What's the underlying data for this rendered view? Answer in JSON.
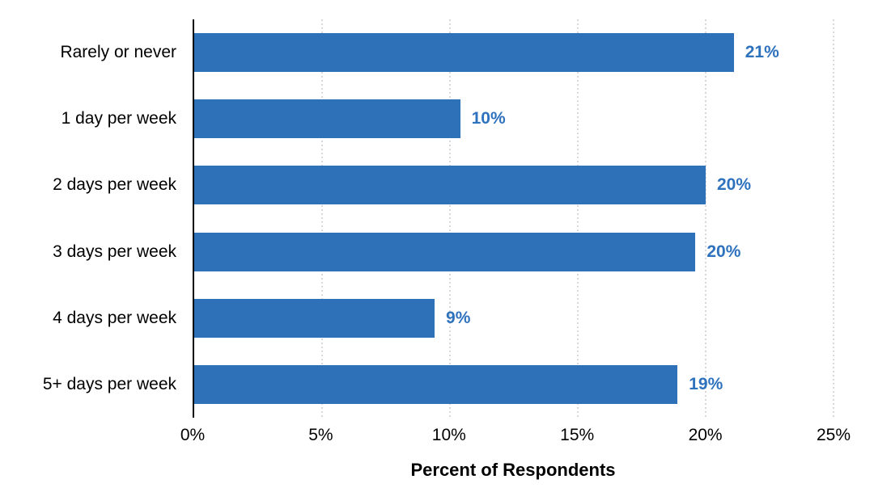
{
  "chart_data": {
    "type": "bar",
    "orientation": "horizontal",
    "title": "",
    "xlabel": "Percent of Respondents",
    "ylabel": "",
    "categories": [
      "Rarely or never",
      "1 day per week",
      "2 days per week",
      "3 days per week",
      "4 days per week",
      "5+ days per week"
    ],
    "values": [
      21,
      10,
      20,
      20,
      9,
      19
    ],
    "value_labels": [
      "21%",
      "10%",
      "20%",
      "20%",
      "9%",
      "19%"
    ],
    "bar_lengths_pct": [
      21.1,
      10.4,
      20.0,
      19.6,
      9.4,
      18.9
    ],
    "xlim": [
      0,
      25
    ],
    "x_tick_values": [
      0,
      5,
      10,
      15,
      20,
      25
    ],
    "x_tick_labels": [
      "0%",
      "5%",
      "10%",
      "15%",
      "20%",
      "25%"
    ],
    "grid": "vertical dotted gridlines at 5% intervals, no horizontal gridlines",
    "legend": "none",
    "colors": {
      "bar": "#2E71B8",
      "value_label": "#2E72BE",
      "axis_line": "#000000",
      "gridline": "#D8D8D8",
      "tick_label": "#000000",
      "category_label": "#000000",
      "background": "#FFFFFF"
    }
  }
}
